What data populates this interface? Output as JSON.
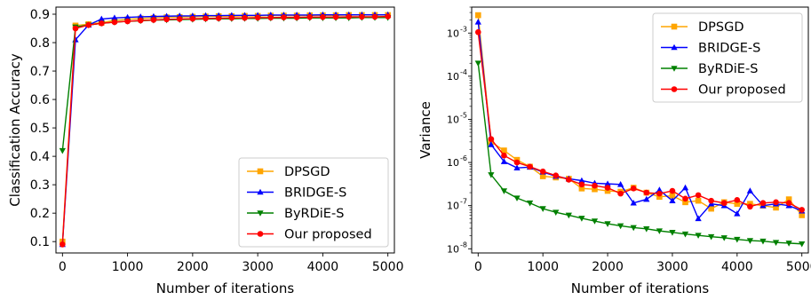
{
  "chart_data": [
    {
      "type": "line",
      "xlabel": "Number of iterations",
      "ylabel": "Classification Accuracy",
      "xlim": [
        -100,
        5100
      ],
      "ylim": [
        0.06,
        0.925
      ],
      "xticks": [
        0,
        1000,
        2000,
        3000,
        4000,
        5000
      ],
      "yticks": [
        0.1,
        0.2,
        0.3,
        0.4,
        0.5,
        0.6,
        0.7,
        0.8,
        0.9
      ],
      "legend_position": "lower-right",
      "x": [
        0,
        200,
        400,
        600,
        800,
        1000,
        1200,
        1400,
        1600,
        1800,
        2000,
        2200,
        2400,
        2600,
        2800,
        3000,
        3200,
        3400,
        3600,
        3800,
        4000,
        4200,
        4400,
        4600,
        4800,
        5000
      ],
      "series": [
        {
          "name": "DPSGD",
          "color": "#ffa500",
          "marker": "square",
          "values": [
            0.1,
            0.86,
            0.865,
            0.87,
            0.878,
            0.882,
            0.885,
            0.887,
            0.889,
            0.89,
            0.891,
            0.892,
            0.893,
            0.893,
            0.894,
            0.894,
            0.895,
            0.895,
            0.895,
            0.896,
            0.896,
            0.896,
            0.897,
            0.897,
            0.897,
            0.897
          ]
        },
        {
          "name": "BRIDGE-S",
          "color": "#0000ff",
          "marker": "triangle-up",
          "values": [
            0.09,
            0.81,
            0.862,
            0.883,
            0.887,
            0.889,
            0.891,
            0.892,
            0.893,
            0.894,
            0.894,
            0.895,
            0.895,
            0.896,
            0.896,
            0.896,
            0.897,
            0.897,
            0.897,
            0.897,
            0.898,
            0.898,
            0.898,
            0.898,
            0.898,
            0.898
          ]
        },
        {
          "name": "ByRDiE-S",
          "color": "#008000",
          "marker": "triangle-down",
          "values": [
            0.42,
            0.855,
            0.862,
            0.868,
            0.872,
            0.875,
            0.877,
            0.879,
            0.88,
            0.881,
            0.882,
            0.883,
            0.884,
            0.884,
            0.885,
            0.885,
            0.886,
            0.886,
            0.886,
            0.887,
            0.887,
            0.887,
            0.887,
            0.888,
            0.888,
            0.888
          ]
        },
        {
          "name": "Our proposed",
          "color": "#ff0000",
          "marker": "circle",
          "values": [
            0.09,
            0.85,
            0.862,
            0.868,
            0.872,
            0.875,
            0.878,
            0.88,
            0.882,
            0.883,
            0.884,
            0.885,
            0.886,
            0.887,
            0.887,
            0.888,
            0.888,
            0.889,
            0.889,
            0.89,
            0.89,
            0.89,
            0.891,
            0.891,
            0.891,
            0.892
          ]
        }
      ]
    },
    {
      "type": "line",
      "xlabel": "Number of iterations",
      "ylabel": "Variance",
      "yscale": "log",
      "xlim": [
        -100,
        5100
      ],
      "ylim": [
        8e-09,
        0.004
      ],
      "xticks": [
        0,
        1000,
        2000,
        3000,
        4000,
        5000
      ],
      "yticks": [
        1e-08,
        1e-07,
        1e-06,
        1e-05,
        0.0001,
        0.001
      ],
      "ytick_labels": [
        "10",
        "10",
        "10",
        "10",
        "10",
        "10"
      ],
      "ytick_exponents": [
        "-8",
        "-7",
        "-6",
        "-5",
        "-4",
        "-3"
      ],
      "legend_position": "upper-right",
      "x": [
        0,
        200,
        400,
        600,
        800,
        1000,
        1200,
        1400,
        1600,
        1800,
        2000,
        2200,
        2400,
        2600,
        2800,
        3000,
        3200,
        3400,
        3600,
        3800,
        4000,
        4200,
        4400,
        4600,
        4800,
        5000
      ],
      "series": [
        {
          "name": "DPSGD",
          "color": "#ffa500",
          "marker": "square",
          "values": [
            0.0026,
            3e-06,
            1.9e-06,
            1.15e-06,
            8e-07,
            4.8e-07,
            4.5e-07,
            4.2e-07,
            2.5e-07,
            2.4e-07,
            2.2e-07,
            2.1e-07,
            2.6e-07,
            2e-07,
            1.6e-07,
            1.7e-07,
            1.2e-07,
            1.3e-07,
            8.5e-08,
            1.2e-07,
            1.1e-07,
            1.1e-07,
            1e-07,
            9e-08,
            1.4e-07,
            6e-08
          ]
        },
        {
          "name": "BRIDGE-S",
          "color": "#0000ff",
          "marker": "triangle-up",
          "values": [
            0.0018,
            2.6e-06,
            1.05e-06,
            7.5e-07,
            7.8e-07,
            6e-07,
            4.8e-07,
            4.2e-07,
            3.8e-07,
            3.3e-07,
            3.2e-07,
            3.1e-07,
            1.15e-07,
            1.4e-07,
            2.3e-07,
            1.3e-07,
            2.6e-07,
            5e-08,
            1.1e-07,
            1e-07,
            6.5e-08,
            2.2e-07,
            1e-07,
            1.1e-07,
            1e-07,
            7.5e-08
          ]
        },
        {
          "name": "ByRDiE-S",
          "color": "#008000",
          "marker": "triangle-down",
          "values": [
            0.0002,
            5.2e-07,
            2.2e-07,
            1.5e-07,
            1.15e-07,
            8.5e-08,
            7e-08,
            6e-08,
            5.1e-08,
            4.4e-08,
            3.8e-08,
            3.4e-08,
            3.1e-08,
            2.9e-08,
            2.6e-08,
            2.4e-08,
            2.2e-08,
            2.05e-08,
            1.9e-08,
            1.8e-08,
            1.65e-08,
            1.55e-08,
            1.5e-08,
            1.4e-08,
            1.35e-08,
            1.3e-08
          ]
        },
        {
          "name": "Our proposed",
          "color": "#ff0000",
          "marker": "circle",
          "values": [
            0.00105,
            3.5e-06,
            1.45e-06,
            1e-06,
            8e-07,
            6.2e-07,
            5e-07,
            4e-07,
            3.1e-07,
            2.9e-07,
            2.6e-07,
            1.9e-07,
            2.5e-07,
            2e-07,
            1.9e-07,
            2.2e-07,
            1.45e-07,
            1.75e-07,
            1.3e-07,
            1.15e-07,
            1.35e-07,
            9.5e-08,
            1.15e-07,
            1.2e-07,
            1.15e-07,
            8e-08
          ]
        }
      ]
    }
  ]
}
